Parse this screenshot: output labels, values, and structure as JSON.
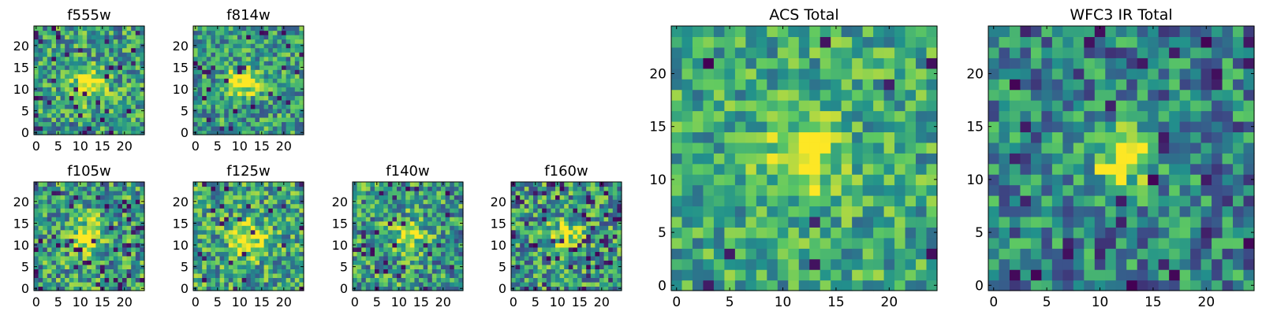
{
  "figure": {
    "background": "#ffffff"
  },
  "colormap": [
    "#440154",
    "#3b528b",
    "#21918c",
    "#5ec962",
    "#fde725"
  ],
  "chart_data": [
    {
      "type": "heatmap",
      "title": "f555w",
      "size": 25,
      "xticks": [
        0,
        5,
        10,
        15,
        20
      ],
      "yticks": [
        0,
        5,
        10,
        15,
        20
      ],
      "xlim": [
        0,
        24
      ],
      "ylim": [
        0,
        24
      ],
      "source": [
        12,
        11
      ],
      "seed": 11,
      "peak": 0.5,
      "sigma": 2.5,
      "noise": 0.32,
      "base": 0.55,
      "dark": 0.05
    },
    {
      "type": "heatmap",
      "title": "f814w",
      "size": 25,
      "xticks": [
        0,
        5,
        10,
        15,
        20
      ],
      "yticks": [
        0,
        5,
        10,
        15,
        20
      ],
      "xlim": [
        0,
        24
      ],
      "ylim": [
        0,
        24
      ],
      "source": [
        11,
        12
      ],
      "seed": 23,
      "peak": 0.6,
      "sigma": 2.2,
      "noise": 0.3,
      "base": 0.55,
      "dark": 0.04
    },
    {
      "type": "heatmap",
      "title": "f105w",
      "size": 25,
      "xticks": [
        0,
        5,
        10,
        15,
        20
      ],
      "yticks": [
        0,
        5,
        10,
        15,
        20
      ],
      "xlim": [
        0,
        24
      ],
      "ylim": [
        0,
        24
      ],
      "source": [
        12,
        12
      ],
      "seed": 37,
      "peak": 0.45,
      "sigma": 2.6,
      "noise": 0.34,
      "base": 0.55,
      "dark": 0.07
    },
    {
      "type": "heatmap",
      "title": "f125w",
      "size": 25,
      "xticks": [
        0,
        5,
        10,
        15,
        20
      ],
      "yticks": [
        0,
        5,
        10,
        15,
        20
      ],
      "xlim": [
        0,
        24
      ],
      "ylim": [
        0,
        24
      ],
      "source": [
        12,
        11
      ],
      "seed": 41,
      "peak": 0.45,
      "sigma": 2.8,
      "noise": 0.32,
      "base": 0.58,
      "dark": 0.05
    },
    {
      "type": "heatmap",
      "title": "f140w",
      "size": 25,
      "xticks": [
        0,
        5,
        10,
        15,
        20
      ],
      "yticks": [
        0,
        5,
        10,
        15,
        20
      ],
      "xlim": [
        0,
        24
      ],
      "ylim": [
        0,
        24
      ],
      "source": [
        12,
        12
      ],
      "seed": 53,
      "peak": 0.4,
      "sigma": 2.6,
      "noise": 0.34,
      "base": 0.55,
      "dark": 0.07
    },
    {
      "type": "heatmap",
      "title": "f160w",
      "size": 25,
      "xticks": [
        0,
        5,
        10,
        15,
        20
      ],
      "yticks": [
        0,
        5,
        10,
        15,
        20
      ],
      "xlim": [
        0,
        24
      ],
      "ylim": [
        0,
        24
      ],
      "source": [
        12,
        12
      ],
      "seed": 67,
      "peak": 0.4,
      "sigma": 2.5,
      "noise": 0.34,
      "base": 0.55,
      "dark": 0.08
    },
    {
      "type": "heatmap",
      "title": "ACS Total",
      "size": 25,
      "xticks": [
        0,
        5,
        10,
        15,
        20
      ],
      "yticks": [
        0,
        5,
        10,
        15,
        20
      ],
      "xlim": [
        0,
        24
      ],
      "ylim": [
        0,
        24
      ],
      "source": [
        12,
        12
      ],
      "seed": 79,
      "peak": 0.45,
      "sigma": 2.4,
      "noise": 0.26,
      "base": 0.6,
      "dark": 0.02
    },
    {
      "type": "heatmap",
      "title": "WFC3 IR Total",
      "size": 25,
      "xticks": [
        0,
        5,
        10,
        15,
        20
      ],
      "yticks": [
        0,
        5,
        10,
        15,
        20
      ],
      "xlim": [
        0,
        24
      ],
      "ylim": [
        0,
        24
      ],
      "source": [
        12,
        12
      ],
      "seed": 97,
      "peak": 0.55,
      "sigma": 2.2,
      "noise": 0.3,
      "base": 0.45,
      "dark": 0.05
    }
  ]
}
